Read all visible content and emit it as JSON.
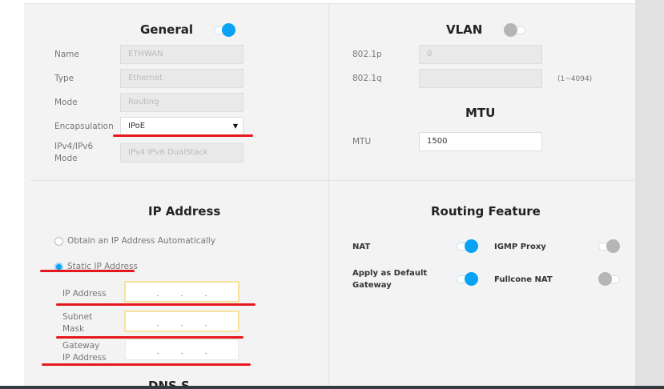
{
  "general": {
    "title": "General",
    "enabled": true,
    "fields": [
      {
        "label": "Name",
        "value": "ETHWAN"
      },
      {
        "label": "Type",
        "value": "Ethernet"
      },
      {
        "label": "Mode",
        "value": "Routing"
      }
    ],
    "encapsulation": {
      "label": "Encapsulation",
      "value": "IPoE"
    },
    "ip_mode": {
      "label_1": "IPv4/IPv6",
      "label_2": "Mode",
      "value": "IPv4 IPv6 DualStack"
    }
  },
  "vlan": {
    "title": "VLAN",
    "enabled": false,
    "p_label": "802.1p",
    "p_value": "0",
    "q_label": "802.1q",
    "q_value": "",
    "q_hint": "(1~4094)"
  },
  "mtu": {
    "title": "MTU",
    "label": "MTU",
    "value": "1500"
  },
  "ip_address": {
    "title": "IP Address",
    "obtain_auto": "Obtain an IP Address Automatically",
    "static": "Static IP Address",
    "selected": "static",
    "ip_label": "IP Address",
    "mask_label_1": "Subnet",
    "mask_label_2": "Mask",
    "gw_label_1": "Gateway",
    "gw_label_2": "IP Address",
    "dot": "."
  },
  "routing": {
    "title": "Routing Feature",
    "nat": "NAT",
    "nat_on": true,
    "igmp": "IGMP Proxy",
    "igmp_on": true,
    "default_gw_1": "Apply as Default",
    "default_gw_2": "Gateway",
    "default_gw_on": true,
    "fullcone": "Fullcone NAT",
    "fullcone_on": false
  },
  "dns": {
    "title_partial": "DNS S"
  },
  "colors": {
    "accent": "#0aa2f5",
    "annotation": "#e5181e"
  }
}
